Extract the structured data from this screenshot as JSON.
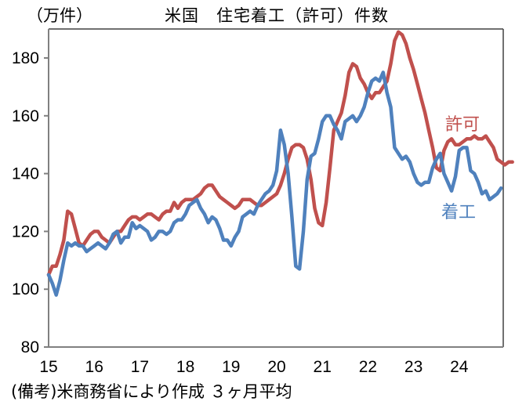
{
  "header": {
    "unit_label": "（万件）",
    "title": "米国　住宅着工（許可）件数"
  },
  "footer": {
    "note": "(備考)米商務省により作成 ３ヶ月平均"
  },
  "colors": {
    "permits": "#C0504D",
    "starts": "#4F81BD",
    "axis": "#808080"
  },
  "chart_data": {
    "type": "line",
    "title": "米国　住宅着工（許可）件数",
    "xlabel": "",
    "ylabel": "（万件）",
    "ylim": [
      80,
      190
    ],
    "yticks": [
      80,
      100,
      120,
      140,
      160,
      180
    ],
    "xticks": [
      "15",
      "16",
      "17",
      "18",
      "19",
      "20",
      "21",
      "22",
      "23",
      "24"
    ],
    "grid": false,
    "legend": "inline labels near line ends",
    "x_frequency": "monthly, Jan 2015 – Oct 2024 (3-month average)",
    "series": [
      {
        "name": "許可",
        "color": "#C0504D",
        "values": [
          105,
          108,
          108,
          112,
          117,
          127,
          126,
          121,
          116,
          115,
          117,
          119,
          120,
          120,
          118,
          117,
          116,
          118,
          120,
          120,
          122,
          124,
          125,
          125,
          124,
          125,
          126,
          126,
          125,
          124,
          126,
          127,
          127,
          130,
          128,
          130,
          131,
          131,
          131,
          132,
          133,
          135,
          136,
          136,
          134,
          132,
          131,
          130,
          129,
          128,
          129,
          131,
          131,
          131,
          130,
          129,
          129,
          130,
          131,
          132,
          133,
          136,
          140,
          145,
          149,
          150,
          150,
          149,
          145,
          138,
          128,
          123,
          122,
          130,
          142,
          155,
          158,
          161,
          167,
          175,
          178,
          177,
          173,
          171,
          168,
          166,
          168,
          168,
          170,
          172,
          178,
          186,
          189,
          188,
          185,
          180,
          176,
          171,
          166,
          161,
          155,
          149,
          142,
          141,
          148,
          151,
          152,
          150,
          150,
          151,
          152,
          152,
          153,
          152,
          152,
          153,
          151,
          149,
          145,
          144,
          143,
          144,
          144
        ]
      },
      {
        "name": "着工",
        "color": "#4F81BD",
        "values": [
          105,
          102,
          98,
          103,
          110,
          116,
          115,
          116,
          115,
          115,
          113,
          114,
          115,
          116,
          115,
          114,
          116,
          119,
          120,
          116,
          118,
          118,
          123,
          121,
          122,
          121,
          120,
          117,
          118,
          120,
          120,
          119,
          120,
          123,
          124,
          124,
          126,
          129,
          130,
          131,
          128,
          126,
          123,
          125,
          124,
          121,
          117,
          117,
          115,
          118,
          120,
          125,
          126,
          127,
          126,
          129,
          131,
          133,
          134,
          136,
          141,
          155,
          150,
          140,
          125,
          108,
          107,
          120,
          138,
          146,
          147,
          152,
          158,
          160,
          160,
          157,
          155,
          152,
          158,
          159,
          160,
          158,
          160,
          163,
          168,
          172,
          173,
          172,
          175,
          168,
          163,
          149,
          147,
          145,
          146,
          144,
          140,
          137,
          136,
          137,
          137,
          142,
          145,
          147,
          140,
          137,
          134,
          139,
          148,
          149,
          149,
          141,
          140,
          137,
          133,
          134,
          131,
          132,
          133,
          135
        ]
      }
    ],
    "annotations": [
      {
        "text": "許可",
        "series": "許可"
      },
      {
        "text": "着工",
        "series": "着工"
      }
    ]
  },
  "labels": {
    "permits": "許可",
    "starts": "着工"
  }
}
